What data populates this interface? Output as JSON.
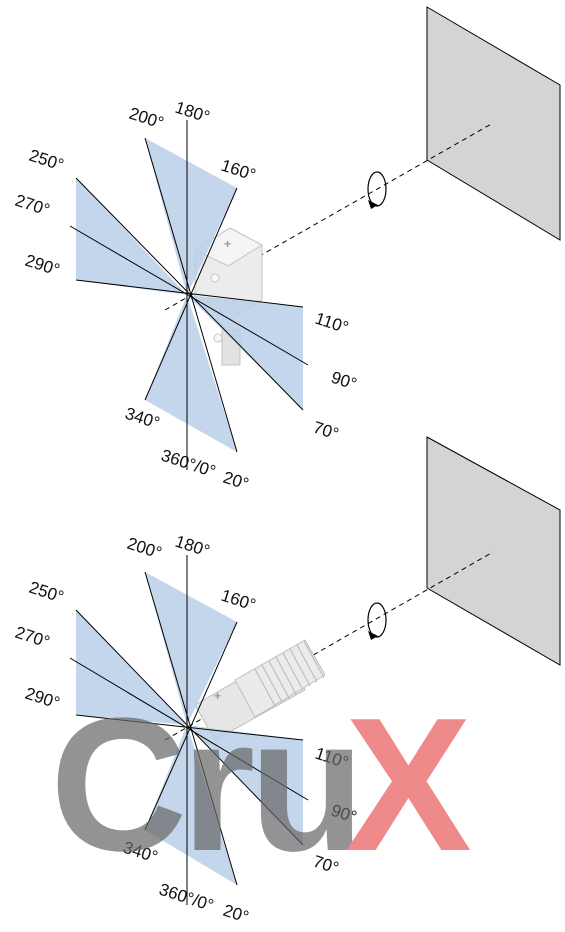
{
  "diagrams": [
    {
      "sensor": "block-sensor",
      "angle_labels": [
        "200°",
        "180°",
        "160°",
        "250°",
        "270°",
        "290°",
        "110°",
        "90°",
        "70°",
        "340°",
        "360°/0°",
        "20°"
      ]
    },
    {
      "sensor": "cylindrical-sensor",
      "angle_labels": [
        "200°",
        "180°",
        "160°",
        "250°",
        "270°",
        "290°",
        "110°",
        "90°",
        "70°",
        "340°",
        "360°/0°",
        "20°"
      ]
    }
  ],
  "watermark": {
    "text_main": "Cru",
    "text_accent": "X",
    "main_color": "#666666",
    "accent_color": "#e85a5a"
  },
  "colors": {
    "sector_fill": "#b9cfe8",
    "target_fill": "#d4d4d4",
    "line": "#000000"
  }
}
